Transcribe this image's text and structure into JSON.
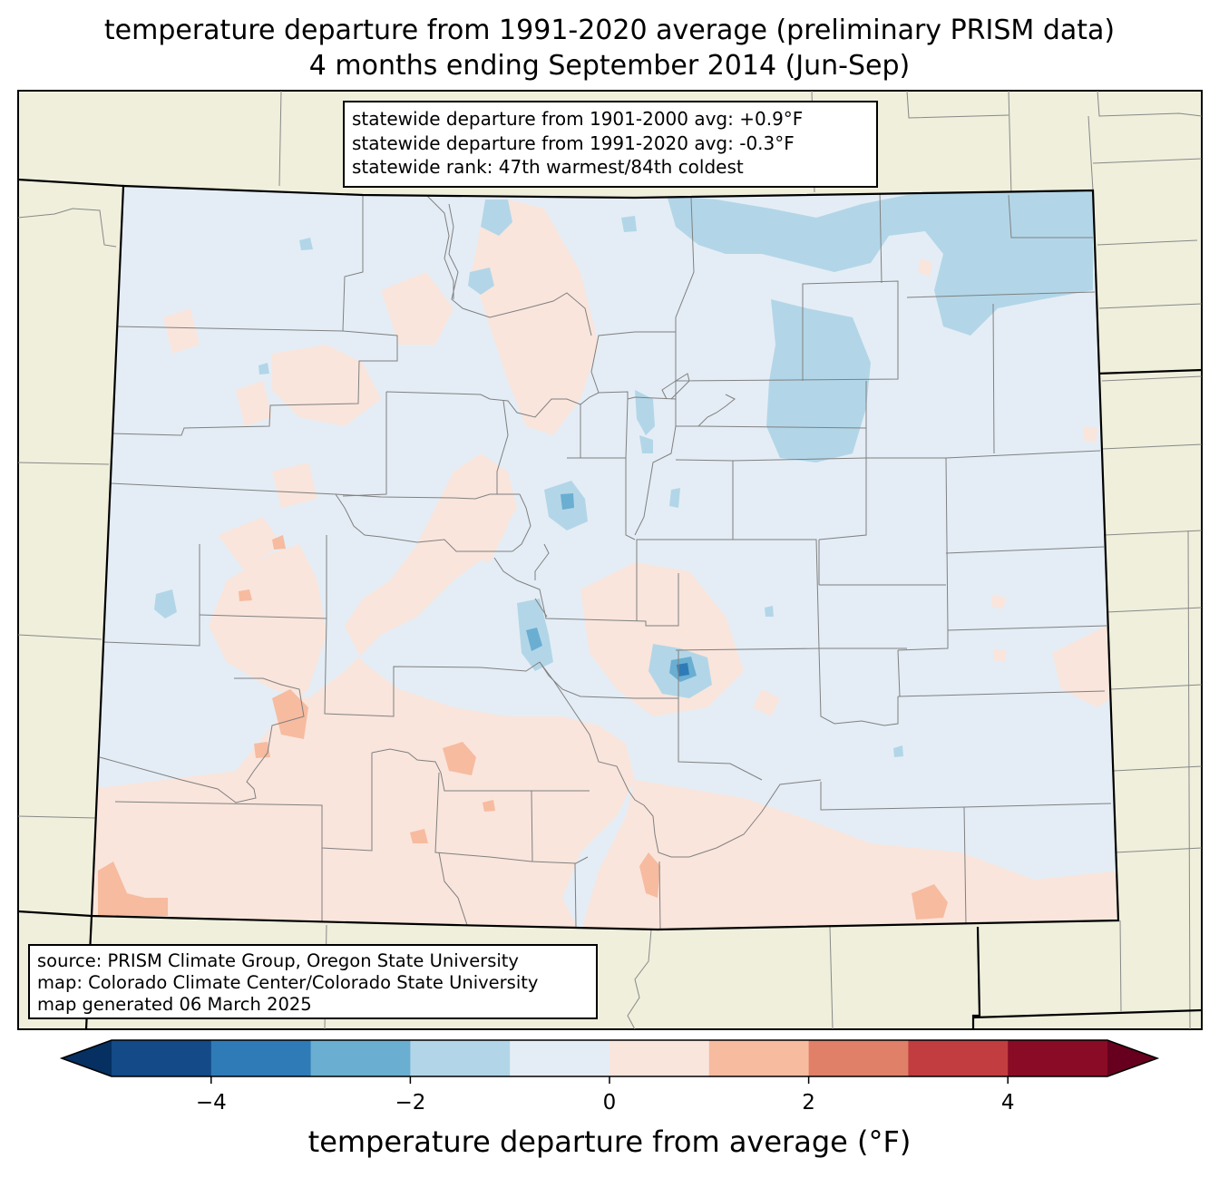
{
  "title": {
    "line1": "temperature departure from 1991-2020 average (preliminary PRISM data)",
    "line2": "4 months ending September 2014 (Jun-Sep)"
  },
  "stats": {
    "line1": "statewide departure from 1901-2000 avg: +0.9°F",
    "line2": "statewide departure from 1991-2020 avg: -0.3°F",
    "line3": "statewide rank: 47th warmest/84th coldest"
  },
  "source": {
    "line1": "source: PRISM Climate Group, Oregon State University",
    "line2": "map: Colorado Climate Center/Colorado State University",
    "line3": "map generated 06 March 2025"
  },
  "colorbar": {
    "label": "temperature departure from average (°F)",
    "range": [
      -5,
      5
    ],
    "step": 1,
    "ticks": [
      {
        "value": -4,
        "label": "−4"
      },
      {
        "value": -2,
        "label": "−2"
      },
      {
        "value": 0,
        "label": "0"
      },
      {
        "value": 2,
        "label": "2"
      },
      {
        "value": 4,
        "label": "4"
      }
    ],
    "colors": [
      "#134a87",
      "#2f7bb8",
      "#6aaed2",
      "#b2d6e8",
      "#e4edf5",
      "#f9e5dc",
      "#f7bba0",
      "#e08068",
      "#c13d3f",
      "#8a0b25"
    ],
    "under_color": "#053061",
    "over_color": "#67001f"
  },
  "map": {
    "land_color": "#efefdc",
    "state_fill": "#e4edf5",
    "warm_color": "#f9e5dc",
    "warm2_color": "#f7bba0",
    "cool_color": "#b2d6e8",
    "cool2_color": "#6aaed2",
    "cool3_color": "#2f7bb8"
  }
}
